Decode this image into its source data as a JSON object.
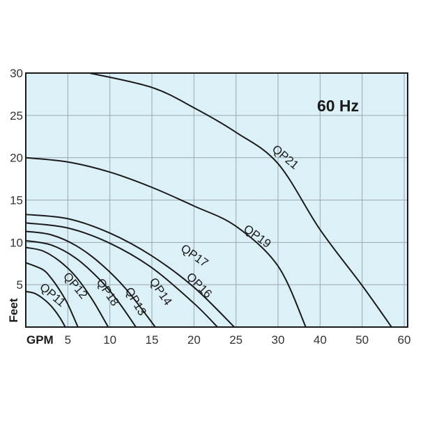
{
  "chart_data": {
    "type": "line",
    "annotation": "60 Hz",
    "x_label": "GPM",
    "y_label": "Feet",
    "xlim": [
      0,
      60
    ],
    "ylim": [
      0,
      30
    ],
    "xticks": [
      5,
      10,
      15,
      20,
      25,
      30,
      40,
      50,
      60
    ],
    "yticks": [
      5,
      10,
      15,
      20,
      25,
      30
    ],
    "grid": true,
    "background": "#dcf0f8",
    "series": [
      {
        "name": "QP11",
        "color": "#1a1a1a",
        "x": [
          0,
          1,
          2,
          3,
          4,
          4.7
        ],
        "values": [
          4.2,
          4.0,
          3.4,
          2.5,
          1.2,
          0
        ]
      },
      {
        "name": "QP12",
        "color": "#1a1a1a",
        "x": [
          0,
          2,
          3,
          4,
          5,
          6.2
        ],
        "values": [
          7.6,
          6.8,
          5.8,
          4.4,
          2.7,
          0
        ]
      },
      {
        "name": "QP18",
        "color": "#1a1a1a",
        "x": [
          0,
          2,
          4,
          6,
          8,
          9.8
        ],
        "values": [
          9.4,
          9.0,
          7.8,
          5.9,
          3.1,
          0
        ]
      },
      {
        "name": "QP13",
        "color": "#1a1a1a",
        "x": [
          0,
          3,
          6,
          9,
          11,
          13.1
        ],
        "values": [
          10.2,
          9.7,
          8.1,
          5.4,
          3.0,
          0
        ]
      },
      {
        "name": "QP14",
        "color": "#1a1a1a",
        "x": [
          0,
          3,
          6,
          9,
          12,
          15.4
        ],
        "values": [
          11.3,
          10.9,
          9.6,
          7.4,
          4.4,
          0
        ]
      },
      {
        "name": "QP16",
        "color": "#1a1a1a",
        "x": [
          0,
          5,
          10,
          15,
          20,
          22.8
        ],
        "values": [
          12.3,
          11.7,
          9.9,
          7.0,
          2.8,
          0
        ]
      },
      {
        "name": "QP17",
        "color": "#1a1a1a",
        "x": [
          0,
          5,
          10,
          15,
          20,
          24.8
        ],
        "values": [
          13.3,
          12.8,
          11.1,
          8.4,
          4.7,
          0
        ]
      },
      {
        "name": "QP19",
        "color": "#1a1a1a",
        "x": [
          0,
          5,
          10,
          15,
          20,
          25,
          30,
          36.6
        ],
        "values": [
          20,
          19.5,
          18.3,
          16.5,
          14.3,
          11.9,
          7.2,
          0
        ]
      },
      {
        "name": "QP21",
        "color": "#1a1a1a",
        "x": [
          7.6,
          15,
          20,
          25,
          30,
          40,
          50,
          57
        ],
        "values": [
          30,
          28.3,
          25.9,
          23,
          19.3,
          11.5,
          4.9,
          0
        ]
      }
    ]
  }
}
